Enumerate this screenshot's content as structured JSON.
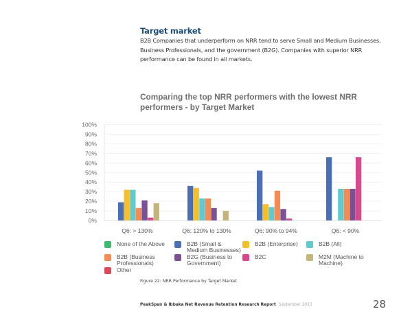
{
  "section": {
    "title": "Target market",
    "body": "B2B Companies that underperform on NRR tend to serve Small and Medium Businesses, Business Professionals, and the government (B2G). Companies with superior NRR performance can be found in all markets."
  },
  "chart_data": {
    "type": "bar",
    "title": "Comparing the top NRR performers with the lowest NRR performers - by Target Market",
    "xlabel": "",
    "ylabel": "",
    "ylim": [
      0,
      100
    ],
    "ytick_labels": [
      "0%",
      "10%",
      "20%",
      "30%",
      "40%",
      "50%",
      "60%",
      "70%",
      "80%",
      "90%",
      "100%"
    ],
    "grid": true,
    "legend_position": "bottom",
    "categories": [
      "Q6: > 130%",
      "Q6: 120% to 130%",
      "Q6: 90% to 94%",
      "Q6: < 90%"
    ],
    "series": [
      {
        "name": "None of the Above",
        "color": "#3dba6e",
        "values": [
          0,
          0,
          0,
          0
        ]
      },
      {
        "name": "B2B (Small & Medium Businesses)",
        "color": "#4a6fb5",
        "values": [
          19,
          36,
          52,
          66
        ]
      },
      {
        "name": "B2B (Enterprise)",
        "color": "#f5bf2a",
        "values": [
          32,
          34,
          17,
          0
        ]
      },
      {
        "name": "B2B (All)",
        "color": "#62c9cf",
        "values": [
          32,
          23,
          14,
          33
        ]
      },
      {
        "name": "B2B (Business Professionals)",
        "color": "#f38b52",
        "values": [
          13,
          23,
          31,
          33
        ]
      },
      {
        "name": "B2G (Business to Government)",
        "color": "#7b5196",
        "values": [
          21,
          13,
          12,
          33
        ]
      },
      {
        "name": "B2C",
        "color": "#d6498a",
        "values": [
          3,
          0,
          2,
          66
        ]
      },
      {
        "name": "M2M (Machine to Machine)",
        "color": "#c4b57c",
        "values": [
          18,
          10,
          0,
          0
        ]
      },
      {
        "name": "Other",
        "color": "#e0495a",
        "values": [
          0,
          0,
          0,
          0
        ]
      }
    ],
    "legend_labels": [
      [
        "None of the Above"
      ],
      [
        "B2B (Small &",
        "Medium Businesses)"
      ],
      [
        "B2B (Enterprise)"
      ],
      [
        "B2B (All)"
      ],
      [
        "B2B (Business",
        "Professionals)"
      ],
      [
        "B2G (Business to",
        "Government)"
      ],
      [
        "B2C"
      ],
      [
        "M2M (Machine to",
        "Machine)"
      ],
      [
        "Other"
      ]
    ]
  },
  "caption": "Figure 22: NRR Performance by Target Market",
  "footer": {
    "report": "PeakSpan & Ibbaka Net Revenue Retention Research Report",
    "date": "September 2023",
    "page_number": "28"
  }
}
